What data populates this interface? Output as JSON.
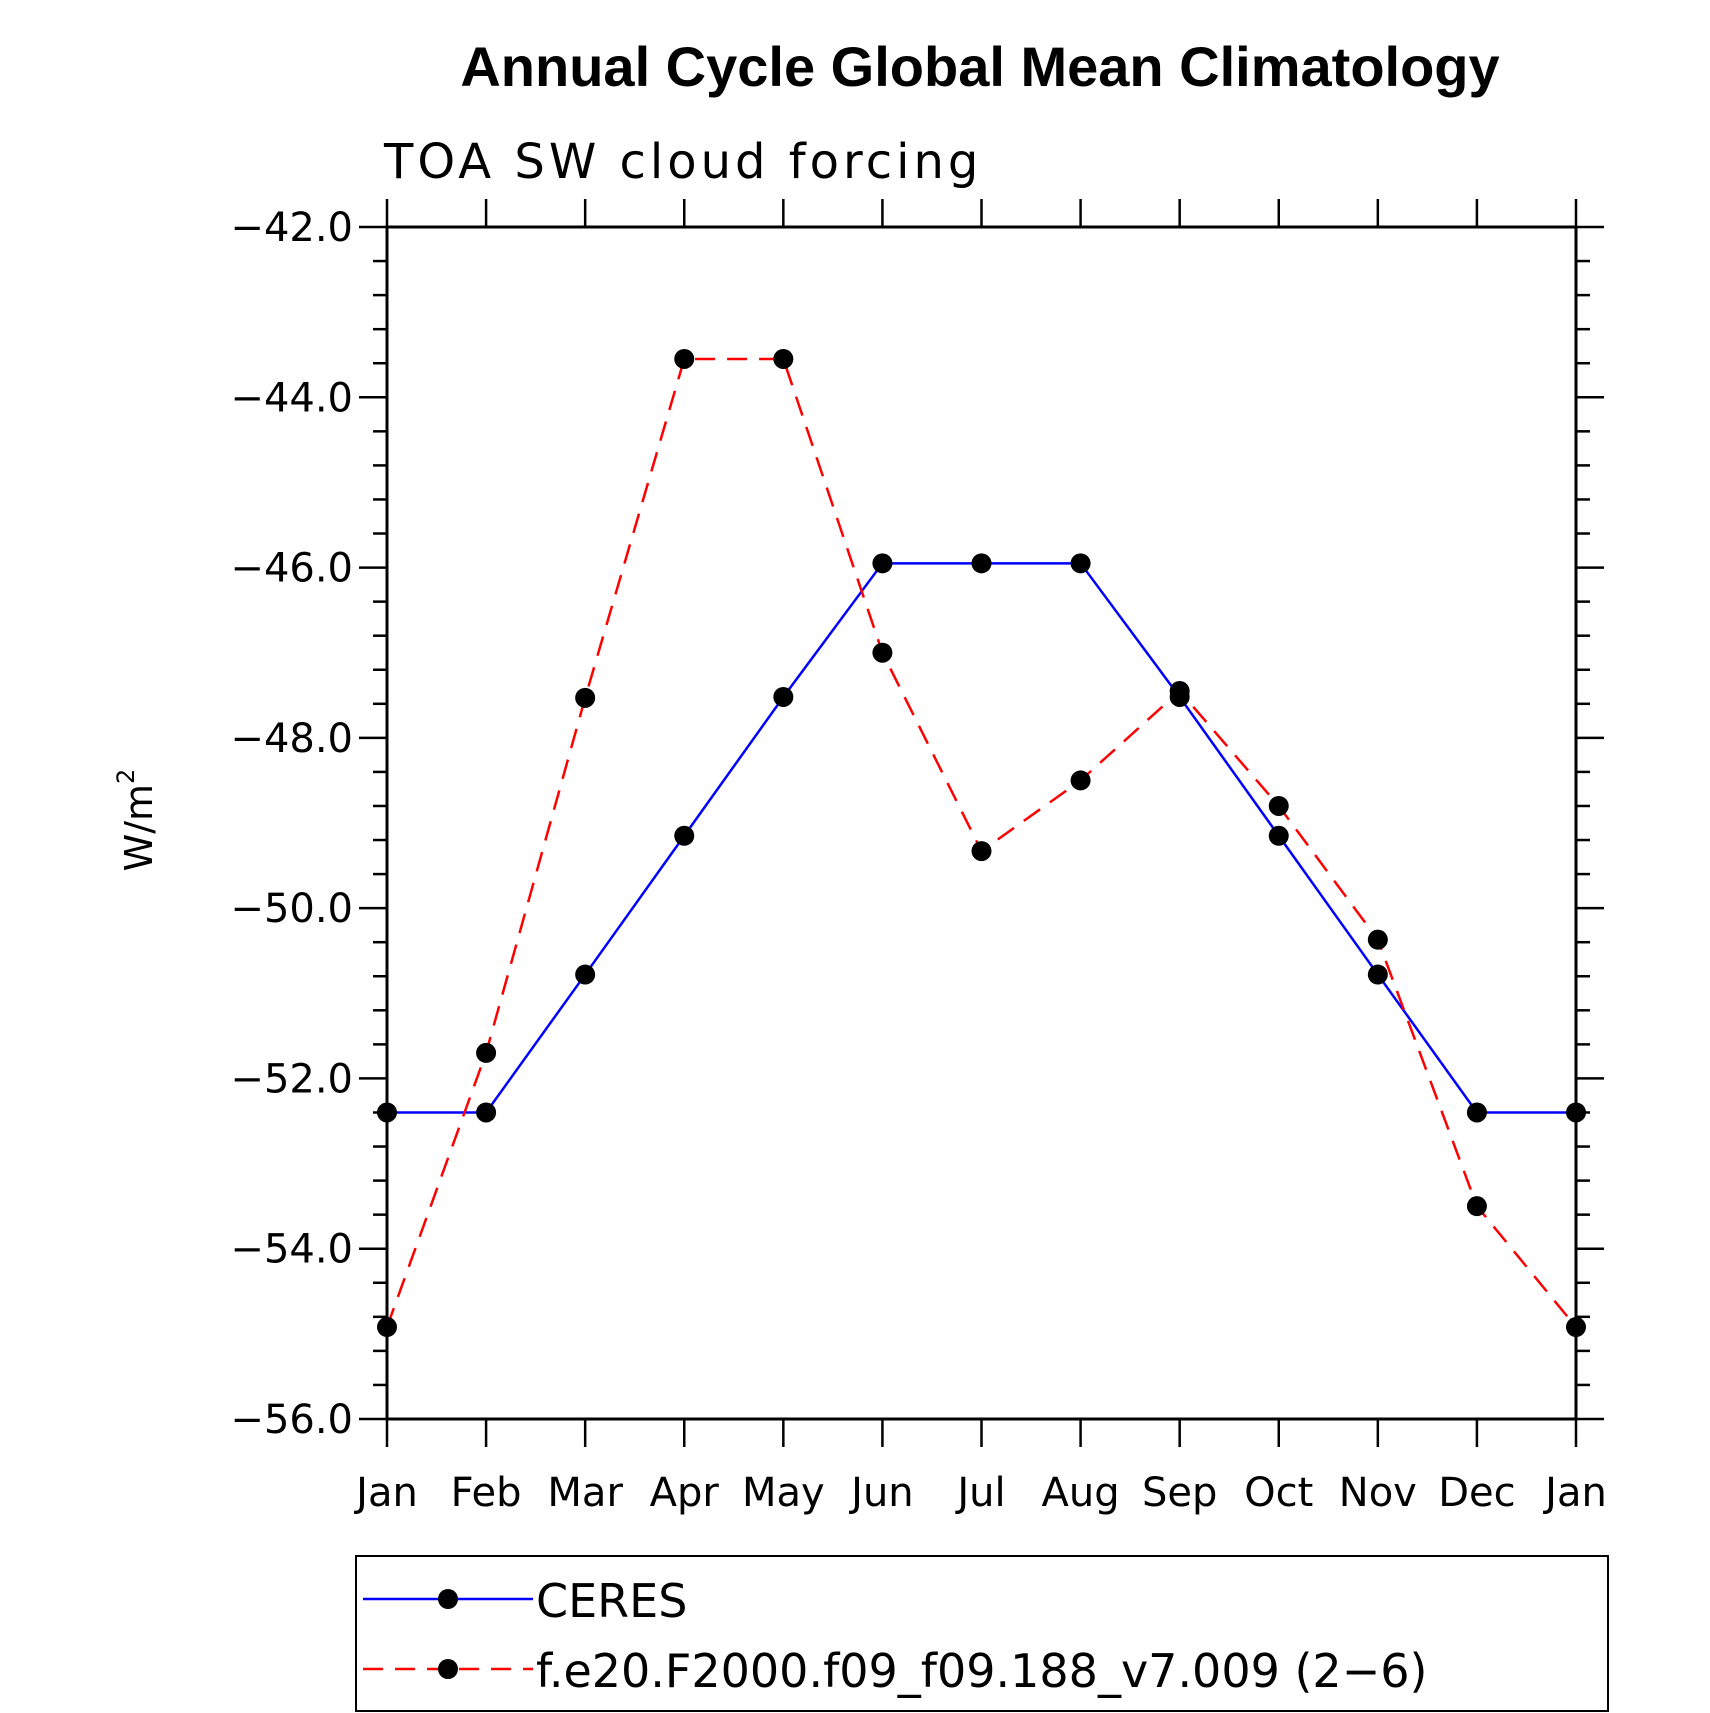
{
  "chart_data": {
    "type": "line",
    "title": "Annual Cycle Global Mean Climatology",
    "subtitle": "TOA SW cloud forcing",
    "ylabel": "W/m",
    "ylabel_sup": "2",
    "ylim": [
      -56.0,
      -42.0
    ],
    "y_ticks": [
      "−42.0",
      "−44.0",
      "−46.0",
      "−48.0",
      "−50.0",
      "−52.0",
      "−54.0",
      "−56.0"
    ],
    "y_tick_values": [
      -42,
      -44,
      -46,
      -48,
      -50,
      -52,
      -54,
      -56
    ],
    "categories": [
      "Jan",
      "Feb",
      "Mar",
      "Apr",
      "May",
      "Jun",
      "Jul",
      "Aug",
      "Sep",
      "Oct",
      "Nov",
      "Dec",
      "Jan"
    ],
    "series": [
      {
        "name": "CERES",
        "color": "#0000ff",
        "dash": "solid",
        "marker_color": "#000000",
        "values": [
          -52.4,
          -52.4,
          -50.78,
          -49.15,
          -47.52,
          -45.95,
          -45.95,
          -45.95,
          -47.52,
          -49.15,
          -50.78,
          -52.4,
          -52.4
        ]
      },
      {
        "name": "f.e20.F2000.f09_f09.188_v7.009 (2−6)",
        "color": "#ff0000",
        "dash": "dashed",
        "marker_color": "#000000",
        "values": [
          -54.92,
          -51.7,
          -47.53,
          -43.55,
          -43.55,
          -47.0,
          -49.33,
          -48.5,
          -47.45,
          -48.8,
          -50.37,
          -53.5,
          -54.92
        ]
      }
    ],
    "legend_placement": "bottom"
  }
}
